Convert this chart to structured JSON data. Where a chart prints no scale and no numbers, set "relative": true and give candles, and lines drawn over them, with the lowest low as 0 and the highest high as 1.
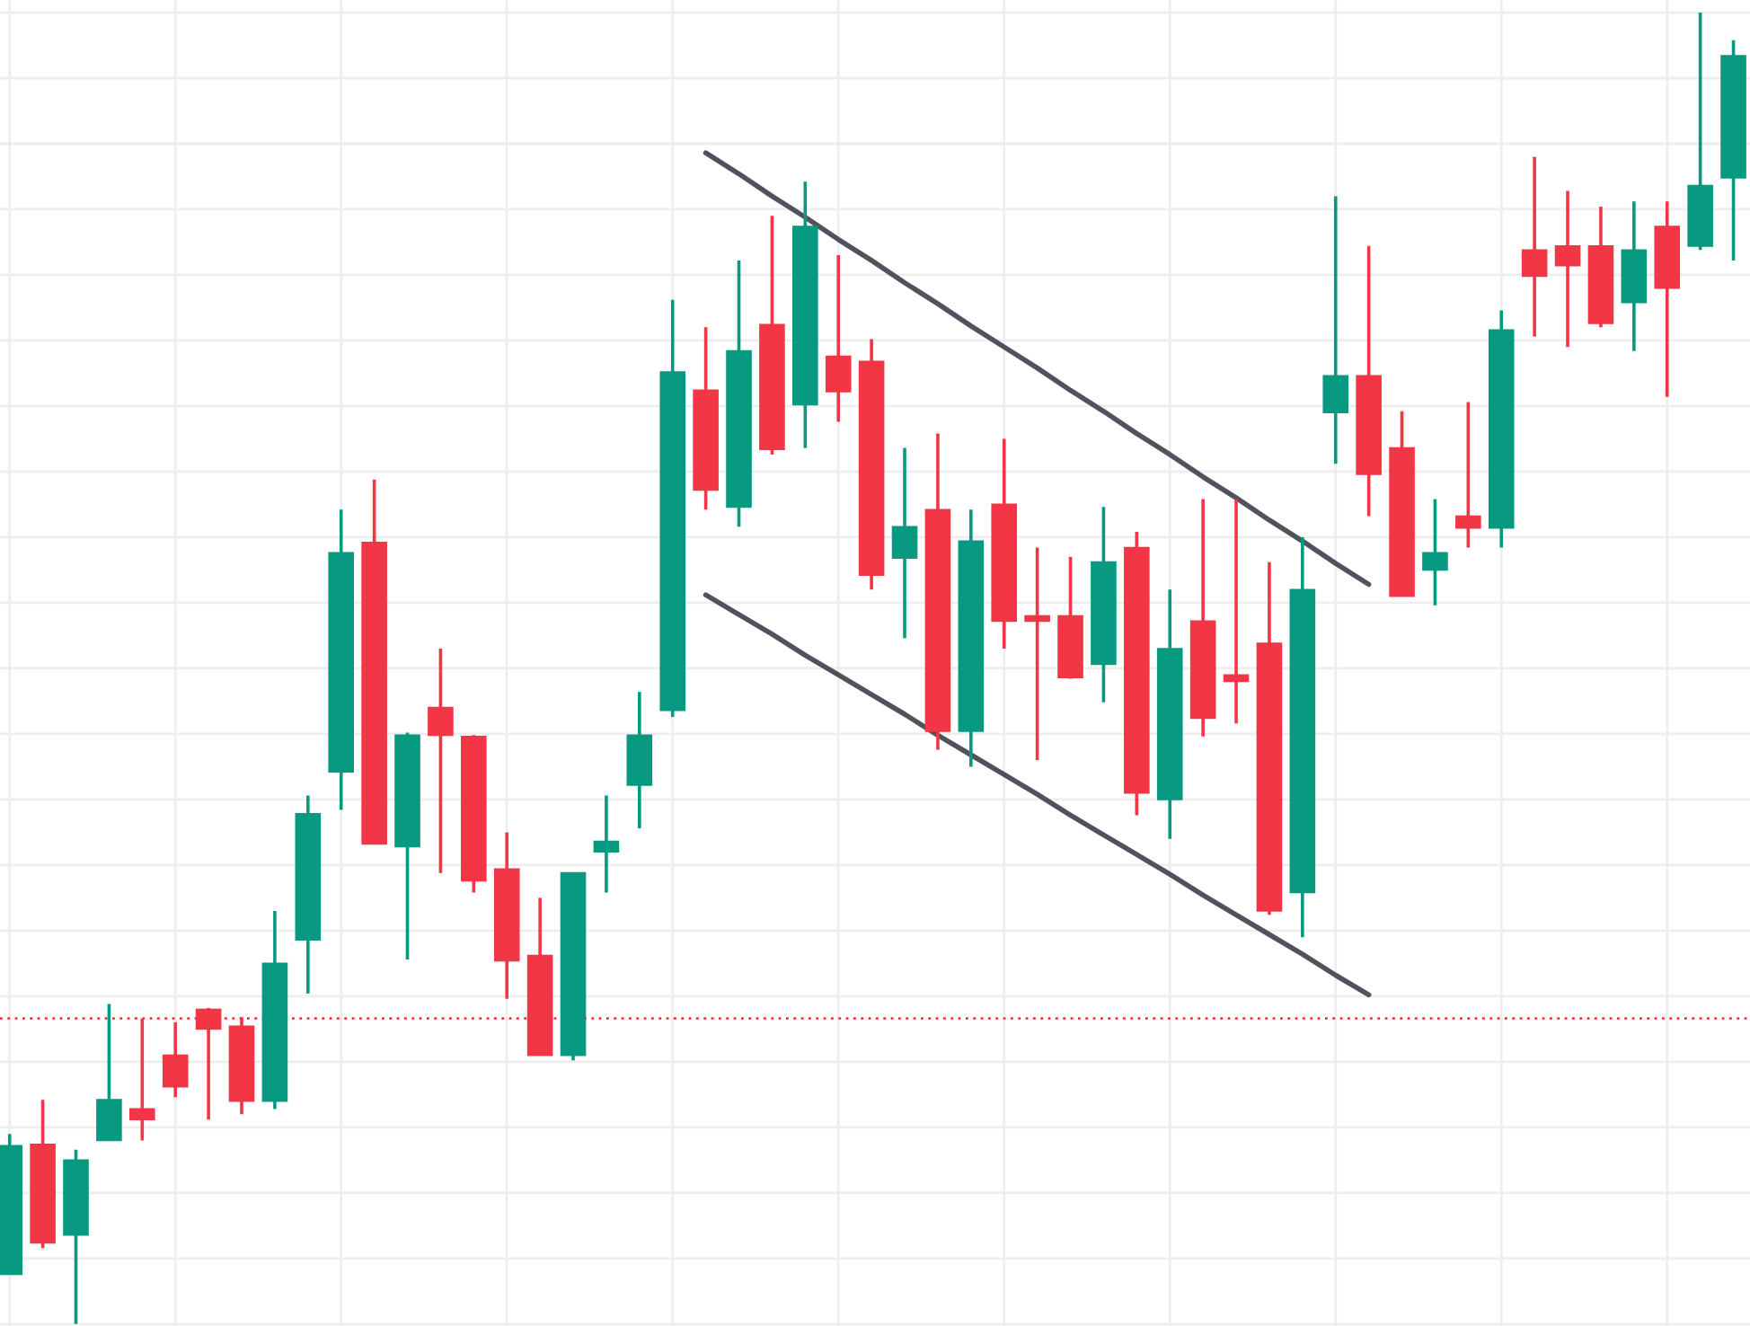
{
  "chart_data": {
    "type": "candlestick",
    "relative": true,
    "categories": [
      null,
      null,
      null,
      null,
      null,
      null,
      null,
      null,
      null,
      null,
      null,
      null,
      null,
      null,
      null,
      null,
      null,
      null,
      null,
      null,
      null,
      null,
      null,
      null,
      null,
      null,
      null,
      null,
      null,
      null,
      null,
      null,
      null,
      null,
      null,
      null,
      null,
      null,
      null,
      null,
      null,
      null,
      null,
      null,
      null,
      null,
      null,
      null,
      null,
      null,
      null,
      null,
      null
    ],
    "ohlc": [
      [
        0.038,
        0.145,
        0.038,
        0.136
      ],
      [
        0.137,
        0.171,
        0.058,
        0.062
      ],
      [
        0.068,
        0.133,
        0.0,
        0.125
      ],
      [
        0.14,
        0.244,
        0.14,
        0.171
      ],
      [
        0.164,
        0.233,
        0.14,
        0.156
      ],
      [
        0.205,
        0.23,
        0.173,
        0.181
      ],
      [
        0.24,
        0.241,
        0.156,
        0.225
      ],
      [
        0.227,
        0.234,
        0.16,
        0.17
      ],
      [
        0.17,
        0.315,
        0.164,
        0.275
      ],
      [
        0.293,
        0.403,
        0.252,
        0.389
      ],
      [
        0.421,
        0.621,
        0.392,
        0.588
      ],
      [
        0.596,
        0.644,
        0.366,
        0.366
      ],
      [
        0.364,
        0.451,
        0.278,
        0.449
      ],
      [
        0.47,
        0.515,
        0.344,
        0.449
      ],
      [
        0.448,
        0.449,
        0.329,
        0.338
      ],
      [
        0.347,
        0.375,
        0.248,
        0.277
      ],
      [
        0.281,
        0.325,
        0.205,
        0.205
      ],
      [
        0.205,
        0.344,
        0.201,
        0.344
      ],
      [
        0.36,
        0.403,
        0.329,
        0.368
      ],
      [
        0.411,
        0.482,
        0.378,
        0.449
      ],
      [
        0.468,
        0.781,
        0.463,
        0.726
      ],
      [
        0.712,
        0.76,
        0.621,
        0.636
      ],
      [
        0.623,
        0.811,
        0.608,
        0.742
      ],
      [
        0.762,
        0.845,
        0.663,
        0.667
      ],
      [
        0.701,
        0.871,
        0.668,
        0.837
      ],
      [
        0.738,
        0.815,
        0.688,
        0.711
      ],
      [
        0.734,
        0.751,
        0.56,
        0.571
      ],
      [
        0.584,
        0.668,
        0.523,
        0.608
      ],
      [
        0.621,
        0.679,
        0.438,
        0.452
      ],
      [
        0.452,
        0.621,
        0.425,
        0.597
      ],
      [
        0.625,
        0.675,
        0.515,
        0.536
      ],
      [
        0.54,
        0.592,
        0.43,
        0.536
      ],
      [
        0.54,
        0.585,
        0.492,
        0.493
      ],
      [
        0.503,
        0.623,
        0.474,
        0.581
      ],
      [
        0.592,
        0.604,
        0.388,
        0.405
      ],
      [
        0.4,
        0.56,
        0.37,
        0.515
      ],
      [
        0.536,
        0.629,
        0.448,
        0.462
      ],
      [
        0.495,
        0.629,
        0.458,
        0.49
      ],
      [
        0.519,
        0.581,
        0.312,
        0.315
      ],
      [
        0.329,
        0.6,
        0.295,
        0.56
      ],
      [
        0.695,
        0.86,
        0.656,
        0.723
      ],
      [
        0.723,
        0.822,
        0.616,
        0.648
      ],
      [
        0.668,
        0.696,
        0.555,
        0.555
      ],
      [
        0.575,
        0.629,
        0.548,
        0.588
      ],
      [
        0.616,
        0.703,
        0.592,
        0.607
      ],
      [
        0.607,
        0.773,
        0.592,
        0.758
      ],
      [
        0.819,
        0.89,
        0.753,
        0.799
      ],
      [
        0.822,
        0.864,
        0.745,
        0.807
      ],
      [
        0.822,
        0.852,
        0.76,
        0.763
      ],
      [
        0.779,
        0.856,
        0.742,
        0.819
      ],
      [
        0.837,
        0.856,
        0.707,
        0.79
      ],
      [
        0.822,
        1.0,
        0.819,
        0.868
      ],
      [
        0.874,
        0.979,
        0.811,
        0.967
      ]
    ],
    "colors": [
      "#089981",
      "#f23645",
      "#089981",
      "#089981",
      "#f23645",
      "#f23645",
      "#f23645",
      "#f23645",
      "#089981",
      "#089981",
      "#089981",
      "#f23645",
      "#089981",
      "#f23645",
      "#f23645",
      "#f23645",
      "#f23645",
      "#089981",
      "#089981",
      "#089981",
      "#089981",
      "#f23645",
      "#089981",
      "#f23645",
      "#089981",
      "#f23645",
      "#f23645",
      "#089981",
      "#f23645",
      "#089981",
      "#f23645",
      "#f23645",
      "#f23645",
      "#089981",
      "#f23645",
      "#089981",
      "#f23645",
      "#f23645",
      "#f23645",
      "#089981",
      "#089981",
      "#f23645",
      "#f23645",
      "#089981",
      "#f23645",
      "#089981",
      "#f23645",
      "#f23645",
      "#f23645",
      "#089981",
      "#f23645",
      "#089981",
      "#089981"
    ],
    "series": [
      {
        "type": "line",
        "color": "#50535e",
        "values": [
          null,
          null,
          null,
          null,
          null,
          null,
          null,
          null,
          null,
          null,
          null,
          null,
          null,
          null,
          null,
          null,
          null,
          null,
          null,
          null,
          null,
          0.893,
          0.877,
          0.86,
          0.844,
          0.827,
          0.811,
          0.794,
          0.778,
          0.761,
          0.745,
          0.729,
          0.712,
          0.696,
          0.679,
          0.663,
          0.646,
          0.63,
          0.613,
          0.597,
          0.58,
          0.564,
          null,
          null,
          null,
          null,
          null,
          null,
          null,
          null,
          null,
          null,
          null
        ]
      },
      {
        "type": "line",
        "color": "#50535e",
        "values": [
          null,
          null,
          null,
          null,
          null,
          null,
          null,
          null,
          null,
          null,
          null,
          null,
          null,
          null,
          null,
          null,
          null,
          null,
          null,
          null,
          null,
          0.556,
          0.541,
          0.526,
          0.51,
          0.495,
          0.48,
          0.465,
          0.449,
          0.434,
          0.419,
          0.404,
          0.388,
          0.373,
          0.358,
          0.343,
          0.327,
          0.312,
          0.297,
          0.282,
          0.266,
          0.251,
          null,
          null,
          null,
          null,
          null,
          null,
          null,
          null,
          null,
          null,
          null
        ]
      }
    ],
    "ref_lines": [
      {
        "axis": "y",
        "value": 0.233,
        "color": "#f23645",
        "line_style": "dotted"
      }
    ],
    "grid": true,
    "tick_labels": false
  }
}
